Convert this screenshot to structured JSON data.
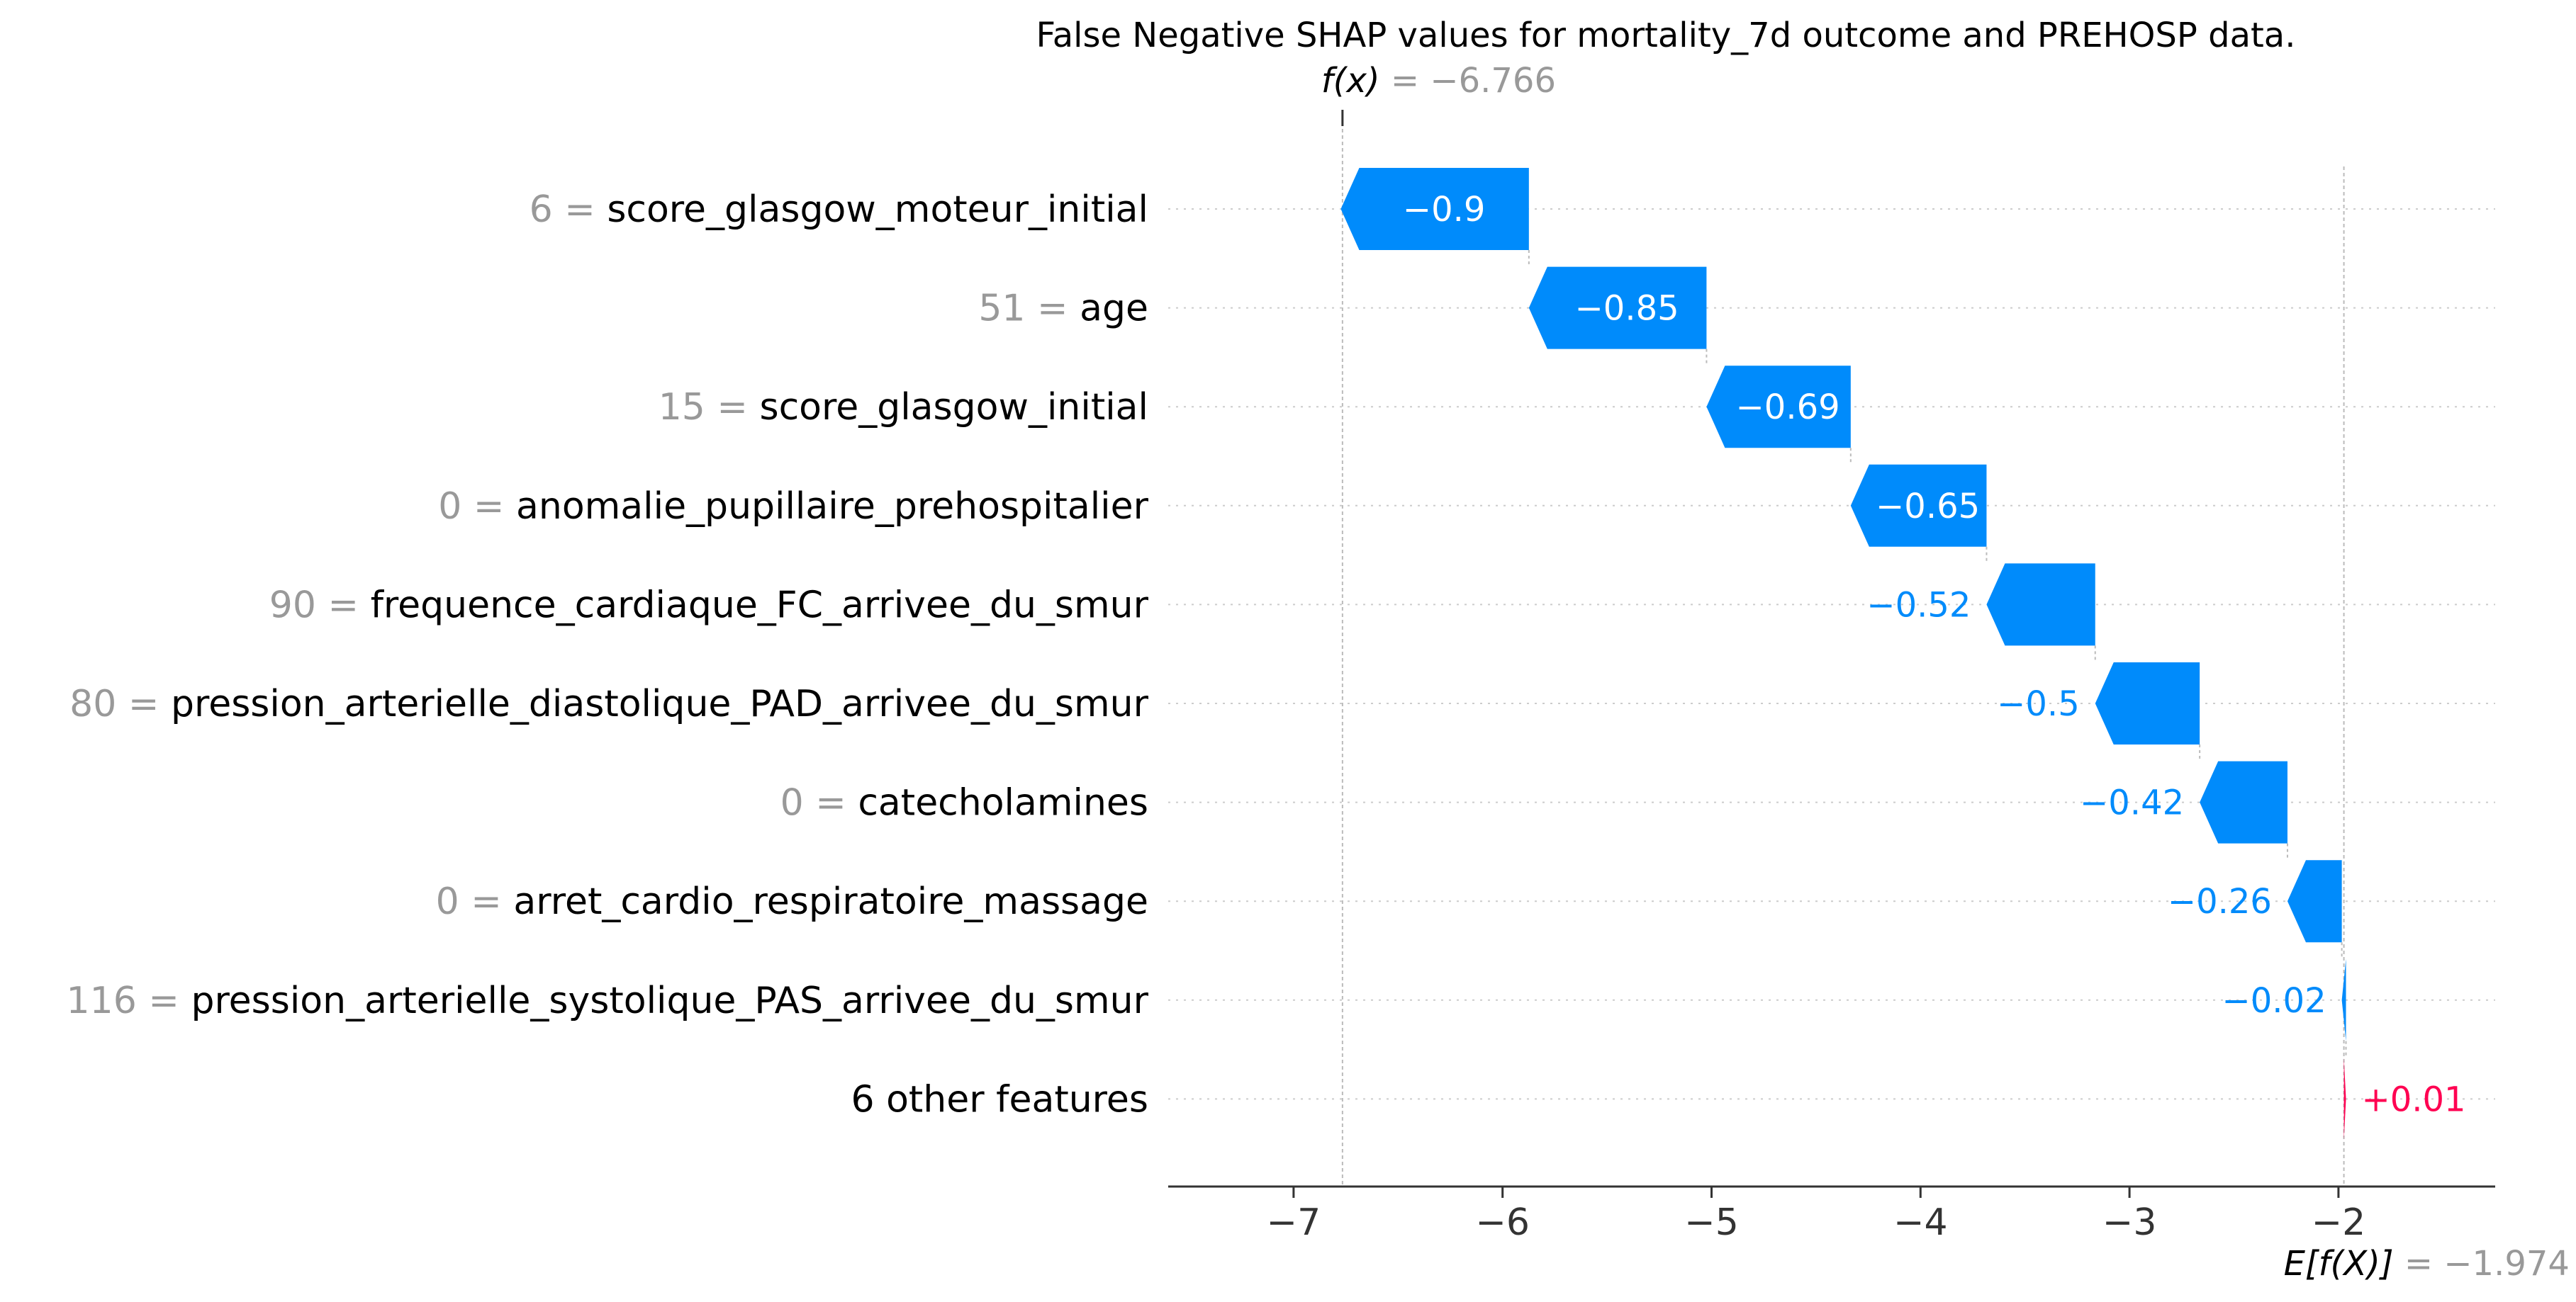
{
  "chart_data": {
    "type": "waterfall",
    "title": "False Negative SHAP values for mortality_7d outcome and PREHOSP data.",
    "fx_label": "f(x)",
    "fx_value": "= −6.766",
    "fx": -6.766,
    "ex_label": "E[f(X)]",
    "ex_value": "= −1.974",
    "base_value": -1.974,
    "xlim": [
      -7.6,
      -1.25
    ],
    "xticks": [
      -7,
      -6,
      -5,
      -4,
      -3,
      -2
    ],
    "xtick_labels": [
      "−7",
      "−6",
      "−5",
      "−4",
      "−3",
      "−2"
    ],
    "grid": false,
    "features": [
      {
        "value_text": "6 =",
        "name": "score_glasgow_moteur_initial",
        "shap": -0.9,
        "label": "−0.9"
      },
      {
        "value_text": "51 =",
        "name": "age",
        "shap": -0.85,
        "label": "−0.85"
      },
      {
        "value_text": "15 =",
        "name": "score_glasgow_initial",
        "shap": -0.69,
        "label": "−0.69"
      },
      {
        "value_text": "0 =",
        "name": "anomalie_pupillaire_prehospitalier",
        "shap": -0.65,
        "label": "−0.65"
      },
      {
        "value_text": "90 =",
        "name": "frequence_cardiaque_FC_arrivee_du_smur",
        "shap": -0.52,
        "label": "−0.52"
      },
      {
        "value_text": "80 =",
        "name": "pression_arterielle_diastolique_PAD_arrivee_du_smur",
        "shap": -0.5,
        "label": "−0.5"
      },
      {
        "value_text": "0 =",
        "name": "catecholamines",
        "shap": -0.42,
        "label": "−0.42"
      },
      {
        "value_text": "0 =",
        "name": "arret_cardio_respiratoire_massage",
        "shap": -0.26,
        "label": "−0.26"
      },
      {
        "value_text": "116 =",
        "name": "pression_arterielle_systolique_PAS_arrivee_du_smur",
        "shap": -0.02,
        "label": "−0.02"
      },
      {
        "value_text": "",
        "name": "6 other features",
        "shap": 0.01,
        "label": "+0.01"
      }
    ],
    "colors": {
      "negative": "#008bfb",
      "positive": "#ff0051",
      "value_text": "#999999",
      "text": "#000000",
      "axis": "#333333",
      "dotted_line": "#cccccc",
      "reference_line": "#bbbbbb"
    }
  }
}
